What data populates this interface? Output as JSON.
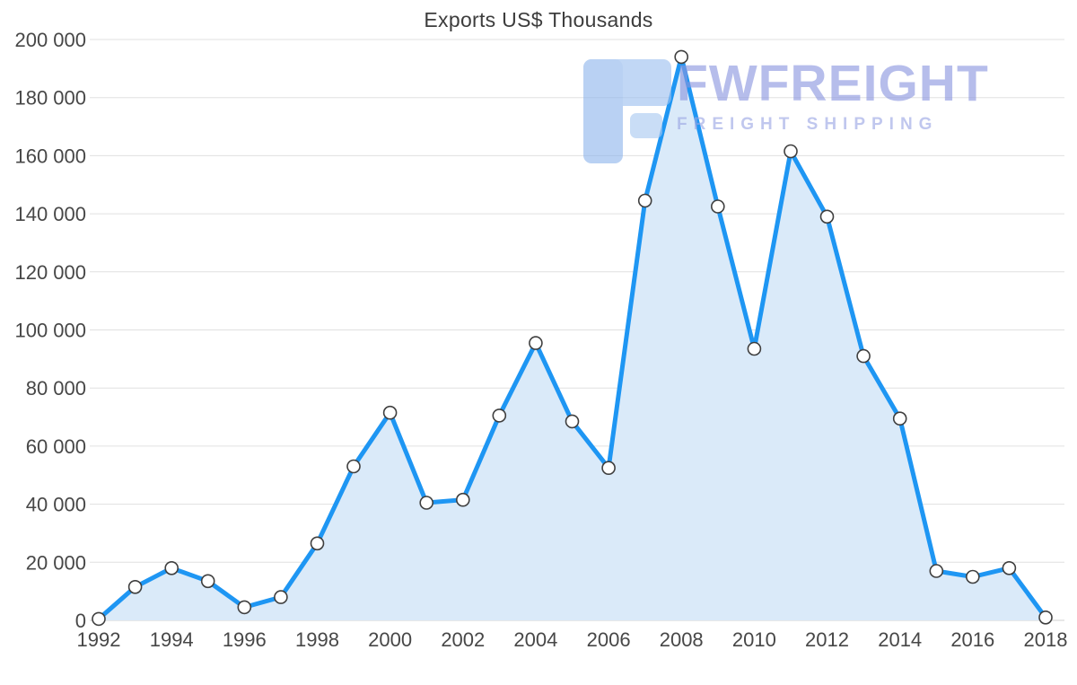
{
  "watermark": {
    "brand": "FWFREIGHT",
    "tagline": "FREIGHT SHIPPING"
  },
  "chart_data": {
    "type": "area",
    "title": "Exports US$ Thousands",
    "xlabel": "",
    "ylabel": "",
    "x": [
      1992,
      1993,
      1994,
      1995,
      1996,
      1997,
      1998,
      1999,
      2000,
      2001,
      2002,
      2003,
      2004,
      2005,
      2006,
      2007,
      2008,
      2009,
      2010,
      2011,
      2012,
      2013,
      2014,
      2015,
      2016,
      2017,
      2018
    ],
    "values": [
      500,
      11500,
      18000,
      13500,
      4500,
      8000,
      26500,
      53000,
      71500,
      40500,
      41500,
      70500,
      95500,
      68500,
      52500,
      144500,
      194000,
      142500,
      93500,
      161500,
      139000,
      91000,
      69500,
      17000,
      15000,
      18000,
      1000
    ],
    "ylim": [
      0,
      200000
    ],
    "ytick_step": 20000,
    "xtick_step": 2,
    "grid": "horizontal",
    "legend": "none",
    "colors": {
      "line": "#1E96F3",
      "fill": "#DAEAF9",
      "marker_fill": "#FFFFFF",
      "marker_stroke": "#3F3F3F",
      "grid": "#E0E0E0",
      "baseline": "#D2D2D2",
      "axis_text": "#474747",
      "title_text": "#3D3D3D",
      "watermark_text": "#8A96DF",
      "watermark_logo": "#9CC0EF"
    }
  }
}
